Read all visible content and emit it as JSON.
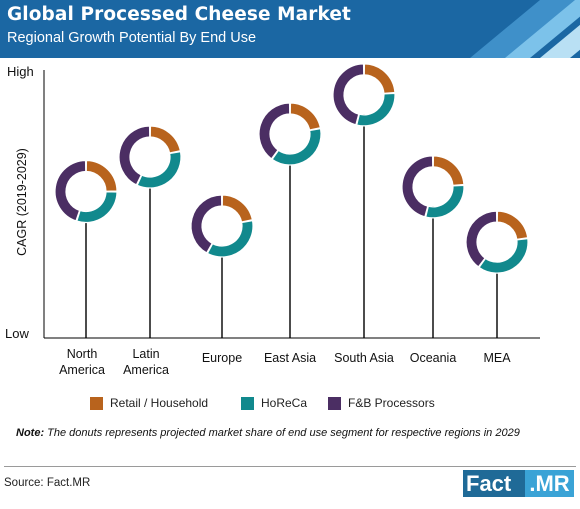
{
  "header": {
    "title": "Global Processed Cheese Market",
    "subtitle": "Regional Growth Potential By End Use"
  },
  "colors": {
    "header_dark": "#1b67a3",
    "header_light": "#7cc2ea",
    "retail": "#b8631d",
    "horeca": "#11898d",
    "fb": "#4b2e63",
    "axis": "#000000"
  },
  "chart_data": {
    "type": "donut-lollipop",
    "title": "Global Processed Cheese Market",
    "subtitle": "Regional Growth Potential By End Use",
    "ylabel": "CAGR (2019-2029)",
    "y_high_label": "High",
    "y_low_label": "Low",
    "categories": [
      "North\nAmerica",
      "Latin\nAmerica",
      "Europe",
      "East Asia",
      "South Asia",
      "Oceania",
      "MEA"
    ],
    "relative_growth": [
      0.55,
      0.7,
      0.4,
      0.8,
      0.97,
      0.57,
      0.33
    ],
    "segments": [
      "Retail / Household",
      "HoReCa",
      "F&B Processors"
    ],
    "share": [
      [
        0.25,
        0.3,
        0.45
      ],
      [
        0.22,
        0.35,
        0.43
      ],
      [
        0.22,
        0.36,
        0.42
      ],
      [
        0.22,
        0.38,
        0.4
      ],
      [
        0.24,
        0.3,
        0.46
      ],
      [
        0.24,
        0.3,
        0.46
      ],
      [
        0.23,
        0.37,
        0.4
      ]
    ]
  },
  "legend": [
    {
      "label": "Retail / Household",
      "color": "#b8631d"
    },
    {
      "label": "HoReCa",
      "color": "#11898d"
    },
    {
      "label": "F&B Processors",
      "color": "#4b2e63"
    }
  ],
  "note": {
    "label": "Note:",
    "text": " The donuts represents projected market share of end use segment for respective regions in 2029"
  },
  "source": "Source: Fact.MR",
  "logo": {
    "part1": "Fact",
    "part2": ".MR"
  }
}
